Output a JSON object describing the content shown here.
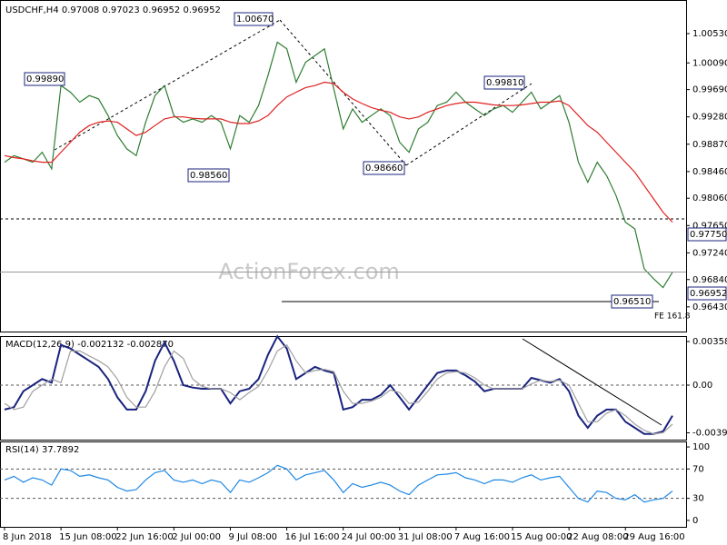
{
  "chart_data": [
    {
      "type": "line",
      "title": "USDCHF,H4 0.97008 0.97023 0.96952 0.96952",
      "watermark": "ActionForex.com",
      "ylim": [
        0.9606,
        1.0102
      ],
      "yticks": [
        {
          "value": 1.0053,
          "label": "1.00530"
        },
        {
          "value": 1.0009,
          "label": "1.00090"
        },
        {
          "value": 0.9969,
          "label": "0.99690"
        },
        {
          "value": 0.9928,
          "label": "0.99280"
        },
        {
          "value": 0.9887,
          "label": "0.98870"
        },
        {
          "value": 0.9846,
          "label": "0.98460"
        },
        {
          "value": 0.9806,
          "label": "0.98060"
        },
        {
          "value": 0.9765,
          "label": "0.97650"
        },
        {
          "value": 0.9724,
          "label": "0.97240"
        },
        {
          "value": 0.9684,
          "label": "0.96840"
        },
        {
          "value": 0.9643,
          "label": "0.96430"
        }
      ],
      "levels": [
        0.9775,
        0.96952,
        0.9651
      ],
      "annotations": [
        "1.00670",
        "0.99890",
        "0.98560",
        "0.98660",
        "0.99810",
        "0.97750",
        "0.96952",
        "0.96510",
        "FE 161.8"
      ],
      "series": [
        {
          "color": "#2e7d32",
          "values": [
            0.986,
            0.987,
            0.9865,
            0.986,
            0.9875,
            0.985,
            0.9975,
            0.9965,
            0.995,
            0.996,
            0.9955,
            0.993,
            0.99,
            0.988,
            0.987,
            0.992,
            0.996,
            0.9975,
            0.993,
            0.992,
            0.9925,
            0.992,
            0.993,
            0.992,
            0.988,
            0.993,
            0.992,
            0.9945,
            0.999,
            1.004,
            1.003,
            0.998,
            1.001,
            1.002,
            1.003,
            0.997,
            0.991,
            0.994,
            0.992,
            0.993,
            0.994,
            0.993,
            0.989,
            0.9875,
            0.991,
            0.992,
            0.9945,
            0.995,
            0.9965,
            0.995,
            0.994,
            0.993,
            0.994,
            0.9945,
            0.9935,
            0.995,
            0.9965,
            0.994,
            0.995,
            0.996,
            0.992,
            0.986,
            0.983,
            0.986,
            0.984,
            0.981,
            0.977,
            0.976,
            0.97,
            0.9685,
            0.9672,
            0.9695
          ]
        },
        {
          "color": "#e02020",
          "values": [
            0.987,
            0.9867,
            0.9865,
            0.9862,
            0.986,
            0.986,
            0.9875,
            0.989,
            0.9905,
            0.9915,
            0.992,
            0.9922,
            0.992,
            0.991,
            0.99,
            0.9905,
            0.9915,
            0.9925,
            0.9928,
            0.9928,
            0.9926,
            0.9925,
            0.9925,
            0.9925,
            0.992,
            0.9918,
            0.9918,
            0.9922,
            0.993,
            0.9945,
            0.9958,
            0.9965,
            0.9972,
            0.9975,
            0.998,
            0.9978,
            0.9965,
            0.9955,
            0.9948,
            0.9942,
            0.9938,
            0.9935,
            0.9928,
            0.9925,
            0.9928,
            0.9935,
            0.994,
            0.9945,
            0.9948,
            0.995,
            0.995,
            0.9948,
            0.9946,
            0.9945,
            0.9945,
            0.9946,
            0.9948,
            0.995,
            0.995,
            0.9952,
            0.9945,
            0.993,
            0.9915,
            0.9905,
            0.989,
            0.9875,
            0.986,
            0.9845,
            0.9825,
            0.9805,
            0.9785,
            0.977
          ]
        }
      ]
    },
    {
      "type": "line",
      "title": "MACD(12,26,9) -0.002132 -0.002870",
      "grid": true,
      "ylim": [
        -0.00447,
        0.00395
      ],
      "yticks": [
        0.00358,
        {
          "value": 0,
          "label": "0.00"
        },
        -0.003908
      ],
      "series": [
        {
          "color": "#1a237e",
          "values": [
            -0.002,
            -0.0018,
            -0.0005,
            0,
            0.0005,
            0.0002,
            0.0033,
            0.003,
            0.0025,
            0.002,
            0.0015,
            0.0005,
            -0.001,
            -0.002,
            -0.002,
            -0.0005,
            0.002,
            0.0035,
            0.002,
            0,
            -0.0002,
            -0.0003,
            -0.0003,
            -0.0003,
            -0.0015,
            -0.0005,
            -0.0003,
            0.0005,
            0.0025,
            0.004,
            0.003,
            0.0005,
            0.001,
            0.0015,
            0.0012,
            0.001,
            -0.002,
            -0.0018,
            -0.0012,
            -0.0012,
            -0.0008,
            0,
            -0.001,
            -0.002,
            -0.001,
            0,
            0.001,
            0.0012,
            0.0012,
            0.0008,
            0.0003,
            -0.0005,
            -0.0003,
            -0.0003,
            -0.0003,
            -0.0003,
            0.0006,
            0.0004,
            0.0002,
            0.0005,
            -0.0005,
            -0.0025,
            -0.0035,
            -0.0025,
            -0.002,
            -0.002,
            -0.003,
            -0.0035,
            -0.004,
            -0.004,
            -0.0038,
            -0.0025
          ]
        },
        {
          "color": "#a0a0a0",
          "values": [
            -0.0015,
            -0.002,
            -0.0018,
            -0.0005,
            0,
            0.0005,
            0.0002,
            0.0028,
            0.0028,
            0.0024,
            0.002,
            0.0015,
            0.0005,
            -0.001,
            -0.0018,
            -0.0018,
            -0.0005,
            0.0015,
            0.0028,
            0.0022,
            0.0005,
            -0.0001,
            -0.0003,
            -0.0003,
            -0.0006,
            -0.0012,
            -0.0006,
            -0.0001,
            0.0012,
            0.0028,
            0.0033,
            0.002,
            0.001,
            0.0012,
            0.0013,
            0.0011,
            -0.0005,
            -0.0015,
            -0.0015,
            -0.0013,
            -0.001,
            -0.0004,
            -0.0006,
            -0.0015,
            -0.0014,
            -0.0005,
            0.0005,
            0.001,
            0.0011,
            0.001,
            0.0006,
            0,
            -0.0003,
            -0.0003,
            -0.0003,
            -0.0003,
            0.0001,
            0.0004,
            0.0003,
            0.0004,
            0,
            -0.0015,
            -0.003,
            -0.003,
            -0.0023,
            -0.002,
            -0.0025,
            -0.0032,
            -0.0037,
            -0.004,
            -0.0039,
            -0.0032
          ]
        }
      ]
    },
    {
      "type": "line",
      "title": "RSI(14) 37.7892",
      "grid": true,
      "ylim": [
        -8.75,
        106.25
      ],
      "yticks": [
        100,
        70,
        30,
        0
      ],
      "categories": [
        "8 Jun 2018",
        null,
        null,
        null,
        null,
        null,
        "15 Jun 08:00",
        null,
        null,
        null,
        null,
        null,
        "22 Jun 16:00",
        null,
        null,
        null,
        null,
        null,
        "2 Jul 00:00",
        null,
        null,
        null,
        null,
        null,
        "9 Jul 08:00",
        null,
        null,
        null,
        null,
        null,
        "16 Jul 16:00",
        null,
        null,
        null,
        null,
        null,
        "24 Jul 00:00",
        null,
        null,
        null,
        null,
        null,
        "31 Jul 08:00",
        null,
        null,
        null,
        null,
        null,
        "7 Aug 16:00",
        null,
        null,
        null,
        null,
        null,
        "15 Aug 00:00",
        null,
        null,
        null,
        null,
        null,
        "22 Aug 08:00",
        null,
        null,
        null,
        null,
        null,
        "29 Aug 16:00",
        null,
        null,
        null,
        null,
        null
      ],
      "series": [
        {
          "color": "#1e88e5",
          "values": [
            55,
            60,
            52,
            58,
            55,
            48,
            70,
            68,
            60,
            62,
            58,
            55,
            45,
            40,
            42,
            55,
            65,
            68,
            55,
            52,
            55,
            50,
            55,
            52,
            38,
            55,
            52,
            58,
            65,
            75,
            70,
            55,
            62,
            65,
            68,
            55,
            38,
            50,
            45,
            48,
            52,
            48,
            40,
            35,
            48,
            55,
            62,
            63,
            65,
            58,
            55,
            50,
            55,
            55,
            52,
            58,
            62,
            55,
            58,
            60,
            45,
            30,
            25,
            40,
            38,
            30,
            28,
            35,
            25,
            28,
            30,
            40
          ]
        }
      ]
    }
  ]
}
